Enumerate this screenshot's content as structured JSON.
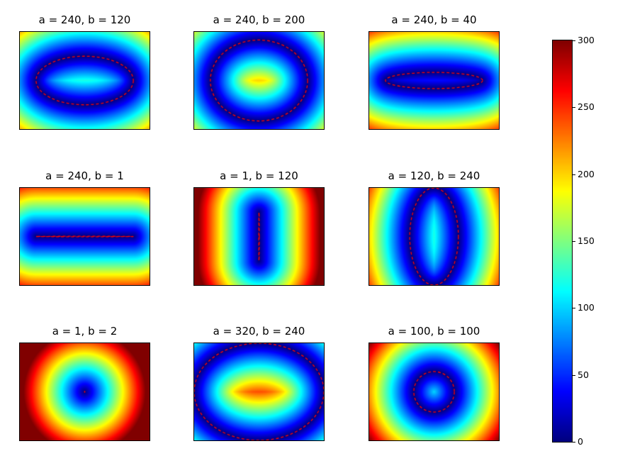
{
  "figure": {
    "background": "#ffffff"
  },
  "chart_data": {
    "type": "heatmap",
    "layout": {
      "rows": 3,
      "cols": 3,
      "legend_position": "right-colorbar",
      "grid": false,
      "axis_ticks": false
    },
    "x_range": [
      -320,
      320
    ],
    "y_range": [
      -240,
      240
    ],
    "vmin": 0,
    "vmax": 300,
    "colormap": "jet",
    "value_function": "euclidean distance from each point (x,y) to the ellipse boundary with semi-axis a along x and semi-axis b along y, clipped to [vmin, vmax]",
    "contour": {
      "style": "dashed",
      "color": "#ff0000",
      "description": "dashed red outline of the ellipse x^2/a^2 + y^2/b^2 = 1 (zero-distance level set)"
    },
    "subplots": [
      {
        "title": "a = 240, b = 120",
        "a": 240,
        "b": 120
      },
      {
        "title": "a = 240, b = 200",
        "a": 240,
        "b": 200
      },
      {
        "title": "a = 240, b = 40",
        "a": 240,
        "b": 40
      },
      {
        "title": "a = 240, b = 1",
        "a": 240,
        "b": 1
      },
      {
        "title": "a = 1, b = 120",
        "a": 1,
        "b": 120
      },
      {
        "title": "a = 120, b = 240",
        "a": 120,
        "b": 240
      },
      {
        "title": "a = 1, b = 2",
        "a": 1,
        "b": 2
      },
      {
        "title": "a = 320, b = 240",
        "a": 320,
        "b": 240
      },
      {
        "title": "a = 100, b = 100",
        "a": 100,
        "b": 100
      }
    ],
    "colorbar": {
      "orientation": "vertical",
      "ticks": [
        0,
        50,
        100,
        150,
        200,
        250,
        300
      ]
    }
  }
}
